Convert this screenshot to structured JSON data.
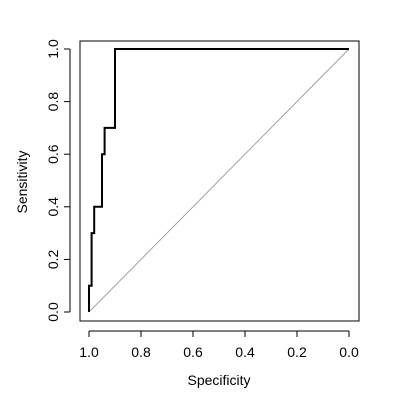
{
  "chart_data": {
    "type": "line",
    "xlabel": "Specificity",
    "ylabel": "Sensitivity",
    "xlim": [
      1.0,
      0.0
    ],
    "ylim": [
      0.0,
      1.0
    ],
    "x_ticks": [
      "1.0",
      "0.8",
      "0.6",
      "0.4",
      "0.2",
      "0.0"
    ],
    "y_ticks": [
      "0.0",
      "0.2",
      "0.4",
      "0.6",
      "0.8",
      "1.0"
    ],
    "grid": false,
    "colors": {
      "curve": "#000000",
      "reference": "#a0a0a0",
      "frame": "#000000"
    },
    "series": [
      {
        "name": "",
        "style": "step",
        "points": [
          {
            "specificity": 1.0,
            "sensitivity": 0.0
          },
          {
            "specificity": 1.0,
            "sensitivity": 0.1
          },
          {
            "specificity": 0.99,
            "sensitivity": 0.1
          },
          {
            "specificity": 0.99,
            "sensitivity": 0.3
          },
          {
            "specificity": 0.98,
            "sensitivity": 0.3
          },
          {
            "specificity": 0.98,
            "sensitivity": 0.4
          },
          {
            "specificity": 0.95,
            "sensitivity": 0.4
          },
          {
            "specificity": 0.95,
            "sensitivity": 0.6
          },
          {
            "specificity": 0.94,
            "sensitivity": 0.6
          },
          {
            "specificity": 0.94,
            "sensitivity": 0.7
          },
          {
            "specificity": 0.9,
            "sensitivity": 0.7
          },
          {
            "specificity": 0.9,
            "sensitivity": 1.0
          },
          {
            "specificity": 0.0,
            "sensitivity": 1.0
          }
        ]
      }
    ],
    "reference_line": [
      {
        "specificity": 1.0,
        "sensitivity": 0.0
      },
      {
        "specificity": 0.0,
        "sensitivity": 1.0
      }
    ]
  }
}
